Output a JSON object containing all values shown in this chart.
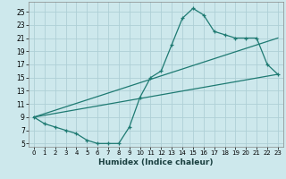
{
  "xlabel": "Humidex (Indice chaleur)",
  "bg_color": "#cde8ec",
  "grid_color": "#aed0d6",
  "line_color": "#1e7a72",
  "xlim": [
    -0.5,
    23.5
  ],
  "ylim": [
    4.5,
    26.5
  ],
  "xticks": [
    0,
    1,
    2,
    3,
    4,
    5,
    6,
    7,
    8,
    9,
    10,
    11,
    12,
    13,
    14,
    15,
    16,
    17,
    18,
    19,
    20,
    21,
    22,
    23
  ],
  "yticks": [
    5,
    7,
    9,
    11,
    13,
    15,
    17,
    19,
    21,
    23,
    25
  ],
  "curve_x": [
    0,
    1,
    2,
    3,
    4,
    5,
    6,
    7,
    8,
    9,
    10,
    11,
    12,
    13,
    14,
    15,
    16,
    17,
    18,
    19,
    20,
    21,
    22,
    23
  ],
  "curve_y": [
    9,
    8,
    7.5,
    7,
    6.5,
    5.5,
    5,
    5,
    5,
    7.5,
    12,
    15,
    16,
    20,
    24,
    25.5,
    24.5,
    22,
    21.5,
    21,
    21,
    21,
    17,
    15.5
  ],
  "line2_x": [
    0,
    23
  ],
  "line2_y": [
    9,
    21
  ],
  "line3_x": [
    0,
    23
  ],
  "line3_y": [
    9,
    15.5
  ]
}
